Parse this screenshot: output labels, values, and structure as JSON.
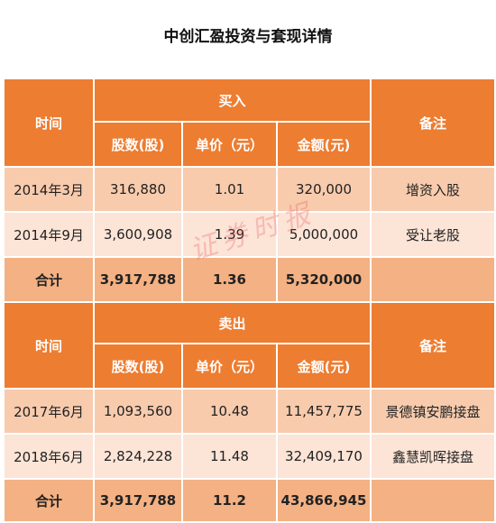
{
  "title": "中创汇盈投资与套现详情",
  "watermark": "证券时报",
  "sections": [
    {
      "header": "买入",
      "time_label": "时间",
      "note_label": "备注",
      "columns": [
        "股数(股)",
        "单价（元）",
        "金额(元)"
      ],
      "rows": [
        {
          "time": "2014年3月",
          "shares": "316,880",
          "price": "1.01",
          "amount": "320,000",
          "note": "增资入股"
        },
        {
          "time": "2014年9月",
          "shares": "3,600,908",
          "price": "1.39",
          "amount": "5,000,000",
          "note": "受让老股"
        }
      ],
      "total": {
        "label": "合计",
        "shares": "3,917,788",
        "price": "1.36",
        "amount": "5,320,000"
      }
    },
    {
      "header": "卖出",
      "time_label": "时间",
      "note_label": "备注",
      "columns": [
        "股数(股)",
        "单价（元）",
        "金额(元)"
      ],
      "rows": [
        {
          "time": "2017年6月",
          "shares": "1,093,560",
          "price": "10.48",
          "amount": "11,457,775",
          "note": "景德镇安鹏接盘"
        },
        {
          "time": "2018年6月",
          "shares": "2,824,228",
          "price": "11.48",
          "amount": "32,409,170",
          "note": "鑫慧凯晖接盘"
        }
      ],
      "total": {
        "label": "合计",
        "shares": "3,917,788",
        "price": "11.2",
        "amount": "43,866,945"
      }
    }
  ],
  "colors": {
    "header": "#ed7d31",
    "row_odd": "#f8cbad",
    "row_even": "#fce4d6",
    "total": "#f4b183"
  }
}
